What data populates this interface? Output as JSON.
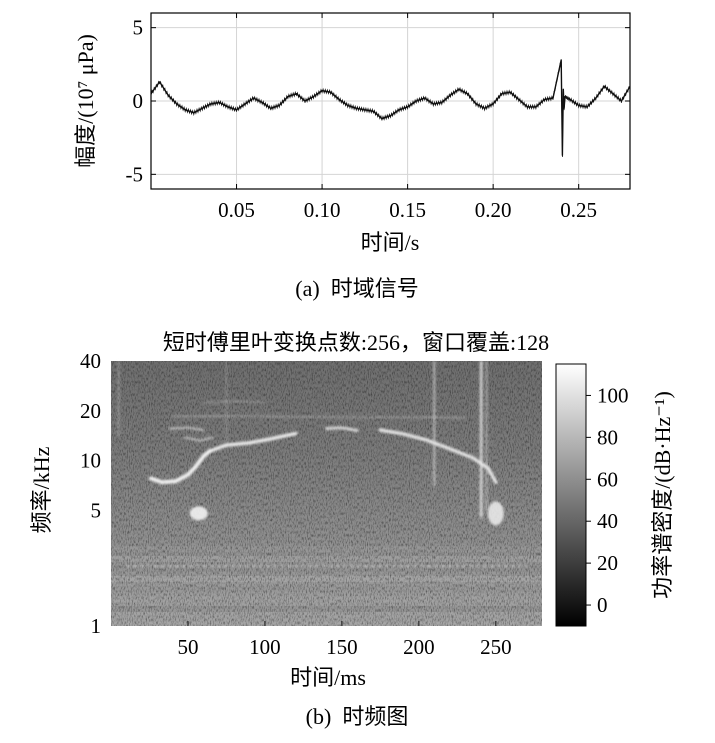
{
  "chart_data": [
    {
      "type": "line",
      "caption": "(a)  时域信号",
      "xlabel": "时间/s",
      "ylabel": "幅度/(10⁷ μPa)",
      "xlim": [
        0,
        0.28
      ],
      "ylim": [
        -6,
        6
      ],
      "xticks": [
        0.05,
        0.1,
        0.15,
        0.2,
        0.25
      ],
      "xtick_labels": [
        "0.05",
        "0.10",
        "0.15",
        "0.20",
        "0.25"
      ],
      "yticks": [
        5,
        0,
        -5
      ],
      "ytick_labels": [
        "5",
        "0",
        "-5"
      ],
      "grid": true,
      "series": [
        {
          "x": [
            0,
            0.005,
            0.01,
            0.015,
            0.02,
            0.025,
            0.03,
            0.035,
            0.04,
            0.045,
            0.05,
            0.055,
            0.06,
            0.065,
            0.07,
            0.075,
            0.08,
            0.085,
            0.09,
            0.095,
            0.1,
            0.105,
            0.11,
            0.115,
            0.12,
            0.125,
            0.13,
            0.135,
            0.14,
            0.145,
            0.15,
            0.155,
            0.16,
            0.165,
            0.17,
            0.175,
            0.18,
            0.185,
            0.19,
            0.195,
            0.2,
            0.205,
            0.21,
            0.215,
            0.22,
            0.225,
            0.23,
            0.235,
            0.2398,
            0.2405,
            0.241,
            0.2415,
            0.242,
            0.245,
            0.25,
            0.255,
            0.26,
            0.265,
            0.27,
            0.275,
            0.28
          ],
          "y": [
            0.5,
            1.3,
            0.4,
            -0.2,
            -0.6,
            -0.8,
            -0.5,
            -0.2,
            -0.1,
            -0.4,
            -0.6,
            -0.2,
            0.2,
            -0.1,
            -0.5,
            -0.3,
            0.3,
            0.5,
            0.0,
            0.3,
            0.7,
            0.6,
            0.1,
            -0.3,
            -0.5,
            -0.6,
            -0.7,
            -1.2,
            -1.0,
            -0.6,
            -0.4,
            0.0,
            0.2,
            -0.2,
            -0.1,
            0.4,
            0.8,
            0.5,
            -0.2,
            -0.5,
            -0.2,
            0.5,
            0.6,
            0.1,
            -0.4,
            -0.4,
            0.1,
            0.2,
            2.8,
            -3.7,
            0.8,
            -0.5,
            0.3,
            0.1,
            -0.3,
            -0.4,
            0.2,
            1.0,
            0.5,
            0.0,
            1.0
          ]
        }
      ]
    },
    {
      "type": "heatmap",
      "title": "短时傅里叶变换点数:256，窗口覆盖:128",
      "caption": "(b)  时频图",
      "xlabel": "时间/ms",
      "ylabel": "频率/kHz",
      "xlim": [
        0,
        280
      ],
      "ylim": [
        1,
        40
      ],
      "yscale": "log",
      "xticks": [
        50,
        100,
        150,
        200,
        250
      ],
      "xtick_labels": [
        "50",
        "100",
        "150",
        "200",
        "250"
      ],
      "yticks": [
        1,
        5,
        10,
        20,
        40
      ],
      "ytick_labels": [
        "1",
        "5",
        "10",
        "20",
        "40"
      ],
      "colorbar": {
        "label": "功率谱密度/(dB·Hz⁻¹)",
        "range": [
          -10,
          115
        ],
        "ticks": [
          0,
          20,
          40,
          60,
          80,
          100
        ],
        "tick_labels": [
          "0",
          "20",
          "40",
          "60",
          "80",
          "100"
        ]
      }
    }
  ]
}
